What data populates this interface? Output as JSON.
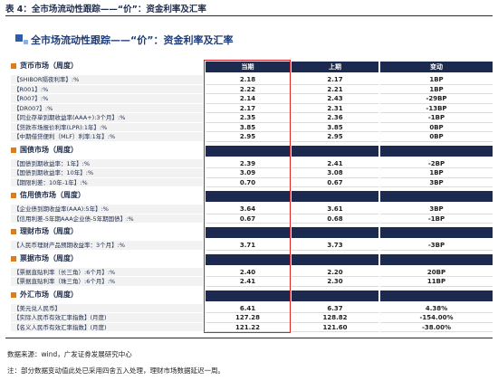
{
  "header": {
    "title": "表 4：全市场流动性跟踪——“价”：资金利率及汇率"
  },
  "subtitle": "全市场流动性跟踪——“价”：资金利率及汇率",
  "table": {
    "columns": [
      "当期",
      "上期",
      "变动"
    ],
    "sections": [
      {
        "title": "货币市场（周度）",
        "rows": [
          [
            "【SHIBOR隔夜利率】:%",
            "2.18",
            "2.17",
            "1BP"
          ],
          [
            "【R001】:%",
            "2.22",
            "2.21",
            "1BP"
          ],
          [
            "【R007】:%",
            "2.14",
            "2.43",
            "-29BP"
          ],
          [
            "【DR007】:%",
            "2.17",
            "2.31",
            "-13BP"
          ],
          [
            "【同业存单到期收益率(AAA+):3个月】:%",
            "2.35",
            "2.36",
            "-1BP"
          ],
          [
            "【贷款市场报价利率(LPR):1年】:%",
            "3.85",
            "3.85",
            "0BP"
          ],
          [
            "【中期借贷便利（MLF）利率:1年】:%",
            "2.95",
            "2.95",
            "0BP"
          ]
        ]
      },
      {
        "title": "国债市场（周度）",
        "rows": [
          [
            "【国债到期收益率：1年】:%",
            "2.39",
            "2.41",
            "-2BP"
          ],
          [
            "【国债到期收益率：10年】:%",
            "3.09",
            "3.08",
            "1BP"
          ],
          [
            "【期限利差：10年-1年】:%",
            "0.70",
            "0.67",
            "3BP"
          ]
        ]
      },
      {
        "title": "信用债市场（周度）",
        "rows": [
          [
            "【企业债到期收益率(AAA):5年】:%",
            "3.64",
            "3.61",
            "3BP"
          ],
          [
            "【信用利差-5年期AAA企业债-5年期国债】:%",
            "0.67",
            "0.68",
            "-1BP"
          ]
        ]
      },
      {
        "title": "理财市场（周度）",
        "rows": [
          [
            "【人民币理财产品预期收益率：3个月】:%",
            "3.71",
            "3.73",
            "-3BP"
          ]
        ]
      },
      {
        "title": "票据市场（周度）",
        "rows": [
          [
            "【票据直贴利率（长三角）:6个月】:%",
            "2.40",
            "2.20",
            "20BP"
          ],
          [
            "【票据直贴利率（珠三角）:6个月】:%",
            "2.41",
            "2.30",
            "11BP"
          ]
        ]
      },
      {
        "title": "外汇市场（周度）",
        "rows": [
          [
            "【美元兑人民币】",
            "6.41",
            "6.37",
            "4.38%"
          ],
          [
            "【实际人民币有效汇率指数】(月度)",
            "127.28",
            "128.82",
            "-154.00%"
          ],
          [
            "【名义人民币有效汇率指数】(月度)",
            "121.22",
            "121.60",
            "-38.00%"
          ]
        ]
      }
    ]
  },
  "footer": {
    "source": "数据来源：wind，广发证券发展研究中心",
    "note": "注：部分数据变动值此处已采用四舍五入处理，理财市场数据延迟一周。"
  }
}
